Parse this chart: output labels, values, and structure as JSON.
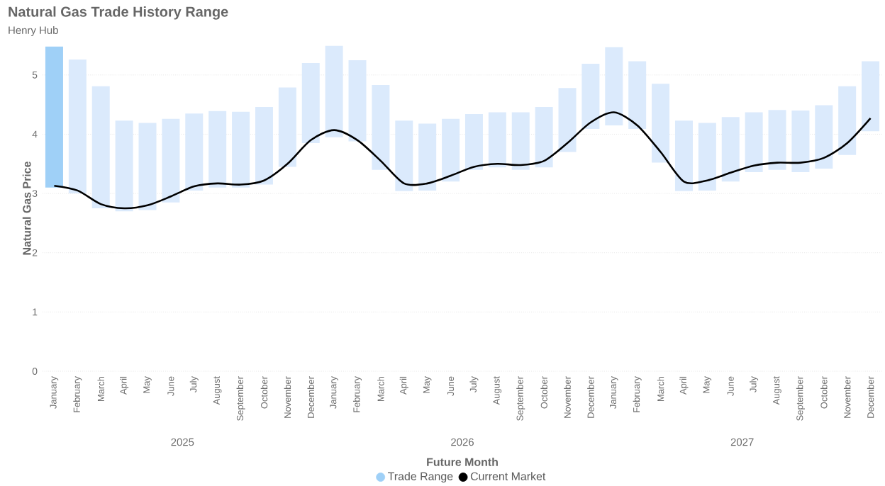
{
  "chart_data": {
    "type": "bar",
    "title": "Natural Gas Trade History Range",
    "subtitle": "Henry Hub",
    "xlabel": "Future Month",
    "ylabel": "Natural Gas Price",
    "categories": [
      "January",
      "February",
      "March",
      "April",
      "May",
      "June",
      "July",
      "August",
      "September",
      "October",
      "November",
      "December",
      "January",
      "February",
      "March",
      "April",
      "May",
      "June",
      "July",
      "August",
      "September",
      "October",
      "November",
      "December",
      "January",
      "February",
      "March",
      "April",
      "May",
      "June",
      "July",
      "August",
      "September",
      "October",
      "November",
      "December"
    ],
    "annotations": [
      "2025",
      "2026",
      "2027"
    ],
    "ylim": [
      0,
      5.5
    ],
    "yticks": [
      0,
      1,
      2,
      3,
      4,
      5
    ],
    "grid": "y",
    "legend": "bottom",
    "series": [
      {
        "name": "Trade Range",
        "color": "#9fd0f7",
        "colors": [
          "#9fd0f7",
          "#dbeafc",
          "#dbeafc",
          "#dbeafc",
          "#dbeafc",
          "#dbeafc",
          "#dbeafc",
          "#dbeafc",
          "#dbeafc",
          "#dbeafc",
          "#dbeafc",
          "#dbeafc",
          "#dbeafc",
          "#dbeafc",
          "#dbeafc",
          "#dbeafc",
          "#dbeafc",
          "#dbeafc",
          "#dbeafc",
          "#dbeafc",
          "#dbeafc",
          "#dbeafc",
          "#dbeafc",
          "#dbeafc",
          "#dbeafc",
          "#dbeafc",
          "#dbeafc",
          "#dbeafc",
          "#dbeafc",
          "#dbeafc",
          "#dbeafc",
          "#dbeafc",
          "#dbeafc",
          "#dbeafc",
          "#dbeafc",
          "#dbeafc"
        ],
        "base": [
          3.1,
          3.0,
          2.75,
          2.7,
          2.72,
          2.85,
          3.05,
          3.1,
          3.1,
          3.15,
          3.45,
          3.85,
          3.95,
          3.88,
          3.4,
          3.04,
          3.05,
          3.2,
          3.4,
          3.44,
          3.4,
          3.44,
          3.7,
          4.09,
          4.15,
          4.09,
          3.52,
          3.04,
          3.05,
          3.2,
          3.36,
          3.4,
          3.36,
          3.42,
          3.65,
          4.05
        ],
        "values": [
          2.38,
          2.26,
          2.06,
          1.53,
          1.47,
          1.41,
          1.3,
          1.29,
          1.28,
          1.31,
          1.34,
          1.35,
          1.54,
          1.37,
          1.43,
          1.19,
          1.13,
          1.06,
          0.94,
          0.93,
          0.97,
          1.02,
          1.08,
          1.1,
          1.32,
          1.14,
          1.33,
          1.19,
          1.14,
          1.09,
          1.01,
          1.01,
          1.04,
          1.07,
          1.16,
          1.18
        ]
      },
      {
        "name": "Current Market",
        "type": "line",
        "color": "#000000",
        "values": [
          3.13,
          3.05,
          2.82,
          2.75,
          2.8,
          2.95,
          3.12,
          3.17,
          3.15,
          3.22,
          3.5,
          3.9,
          4.07,
          3.9,
          3.55,
          3.17,
          3.17,
          3.3,
          3.45,
          3.5,
          3.48,
          3.55,
          3.85,
          4.2,
          4.37,
          4.15,
          3.7,
          3.2,
          3.22,
          3.35,
          3.47,
          3.52,
          3.52,
          3.6,
          3.85,
          4.27
        ]
      }
    ]
  }
}
